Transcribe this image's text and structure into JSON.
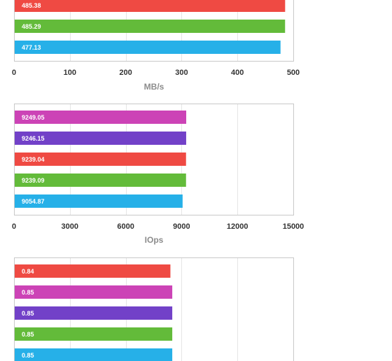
{
  "chart_data": [
    {
      "type": "bar",
      "orientation": "horizontal",
      "xlabel": "MB/s",
      "xlim": [
        0,
        500
      ],
      "ticks": [
        "0",
        "100",
        "200",
        "300",
        "400",
        "500"
      ],
      "bars": [
        {
          "value": 485.38,
          "label": "485.38",
          "color": "#ef4a43"
        },
        {
          "value": 485.29,
          "label": "485.29",
          "color": "#63bb3a"
        },
        {
          "value": 477.13,
          "label": "477.13",
          "color": "#26b0e8"
        }
      ]
    },
    {
      "type": "bar",
      "orientation": "horizontal",
      "xlabel": "IOps",
      "xlim": [
        0,
        15000
      ],
      "ticks": [
        "0",
        "3000",
        "6000",
        "9000",
        "12000",
        "15000"
      ],
      "bars": [
        {
          "value": 9249.05,
          "label": "9249.05",
          "color": "#cc43b6"
        },
        {
          "value": 9246.15,
          "label": "9246.15",
          "color": "#7241c8"
        },
        {
          "value": 9239.04,
          "label": "9239.04",
          "color": "#ef4a43"
        },
        {
          "value": 9239.09,
          "label": "9239.09",
          "color": "#63bb3a"
        },
        {
          "value": 9054.87,
          "label": "9054.87",
          "color": "#26b0e8"
        }
      ]
    },
    {
      "type": "bar",
      "orientation": "horizontal",
      "xlabel": "",
      "xlim": [
        0,
        1.5
      ],
      "ticks": [],
      "bars": [
        {
          "value": 0.84,
          "label": "0.84",
          "color": "#ef4a43"
        },
        {
          "value": 0.85,
          "label": "0.85",
          "color": "#cc43b6"
        },
        {
          "value": 0.85,
          "label": "0.85",
          "color": "#7241c8"
        },
        {
          "value": 0.85,
          "label": "0.85",
          "color": "#63bb3a"
        },
        {
          "value": 0.85,
          "label": "0.85",
          "color": "#26b0e8"
        }
      ]
    }
  ]
}
